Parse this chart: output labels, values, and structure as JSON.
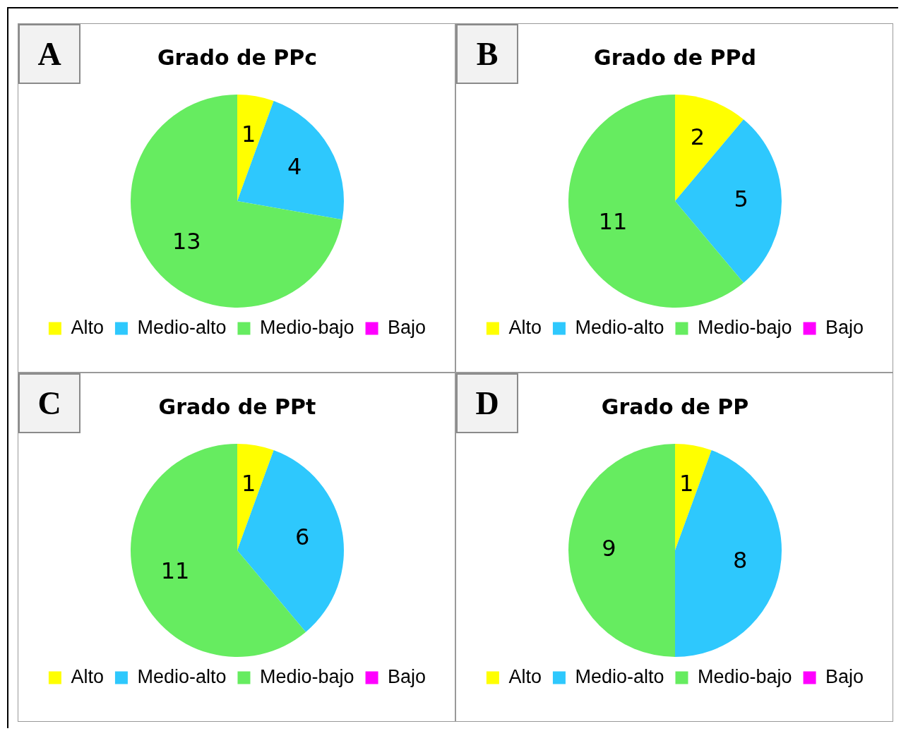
{
  "chart_data": [
    {
      "type": "pie",
      "title": "Grado de PPc",
      "categories": [
        "Alto",
        "Medio-alto",
        "Medio-bajo",
        "Bajo"
      ],
      "values": [
        1,
        4,
        13,
        0
      ],
      "colors": [
        "#ffff00",
        "#2ec8fd",
        "#66ec60",
        "#ff00ff"
      ],
      "value_labels": [
        "1",
        "4",
        "13",
        null
      ],
      "legend": "bottom",
      "annotations": [
        "A"
      ]
    },
    {
      "type": "pie",
      "title": "Grado de PPd",
      "categories": [
        "Alto",
        "Medio-alto",
        "Medio-bajo",
        "Bajo"
      ],
      "values": [
        2,
        5,
        11,
        0
      ],
      "colors": [
        "#ffff00",
        "#2ec8fd",
        "#66ec60",
        "#ff00ff"
      ],
      "value_labels": [
        "2",
        "5",
        "11",
        null
      ],
      "legend": "bottom",
      "annotations": [
        "B"
      ]
    },
    {
      "type": "pie",
      "title": "Grado de PPt",
      "categories": [
        "Alto",
        "Medio-alto",
        "Medio-bajo",
        "Bajo"
      ],
      "values": [
        1,
        6,
        11,
        0
      ],
      "colors": [
        "#ffff00",
        "#2ec8fd",
        "#66ec60",
        "#ff00ff"
      ],
      "value_labels": [
        "1",
        "6",
        "11",
        null
      ],
      "legend": "bottom",
      "annotations": [
        "C"
      ]
    },
    {
      "type": "pie",
      "title": "Grado de PP",
      "categories": [
        "Alto",
        "Medio-alto",
        "Medio-bajo",
        "Bajo"
      ],
      "values": [
        1,
        8,
        9,
        0
      ],
      "colors": [
        "#ffff00",
        "#2ec8fd",
        "#66ec60",
        "#ff00ff"
      ],
      "value_labels": [
        "1",
        "8",
        "9",
        null
      ],
      "legend": "bottom",
      "annotations": [
        "D"
      ]
    }
  ]
}
